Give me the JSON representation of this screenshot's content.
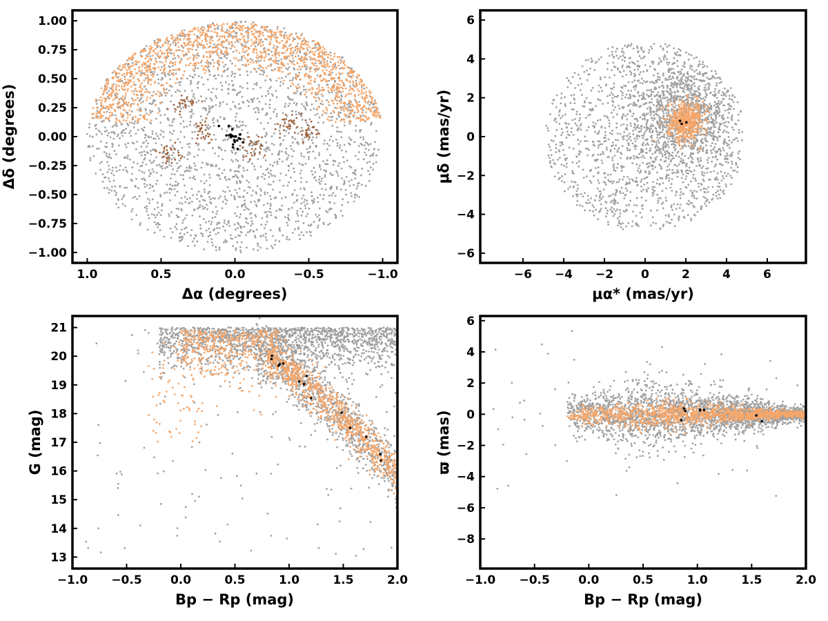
{
  "figure": {
    "colors": {
      "field": "#a0a0a0",
      "members": "#f5a66a",
      "members_dark": "#a0613a",
      "core": "#000000",
      "frame": "#000000"
    }
  },
  "chart_data": [
    {
      "id": "spatial",
      "type": "scatter",
      "xlabel": "Δα (degrees)",
      "ylabel": "Δδ (degrees)",
      "xlim": [
        1.1,
        -1.1
      ],
      "ylim": [
        -1.09,
        1.09
      ],
      "xticks": [
        1.0,
        0.5,
        0.0,
        -0.5,
        -1.0
      ],
      "xtick_labels": [
        "1.0",
        "0.5",
        "0.0",
        "−0.5",
        "−1.0"
      ],
      "yticks": [
        -1.0,
        -0.75,
        -0.5,
        -0.25,
        0.0,
        0.25,
        0.5,
        0.75,
        1.0
      ],
      "ytick_labels": [
        "−1.00",
        "−0.75",
        "−0.50",
        "−0.25",
        "0.00",
        "0.25",
        "0.50",
        "0.75",
        "1.00"
      ],
      "grid": false,
      "series": [
        {
          "role": "field",
          "color": "#a0a0a0",
          "distribution": "uniform disk",
          "center": [
            0,
            0
          ],
          "radius": 1.0,
          "n": 2200
        },
        {
          "role": "members",
          "color": "#f5a66a",
          "distribution": "northern arc band",
          "center": [
            0,
            0
          ],
          "radius_range": [
            0.55,
            1.0
          ],
          "n": 1400
        },
        {
          "role": "members_dark",
          "color": "#a0613a",
          "distribution": "clumps",
          "centers": [
            [
              0.22,
              0.05
            ],
            [
              -0.12,
              -0.08
            ],
            [
              -0.35,
              0.12
            ],
            [
              0.45,
              -0.15
            ],
            [
              -0.5,
              0.05
            ],
            [
              0.35,
              0.28
            ]
          ],
          "n": 160
        },
        {
          "role": "core",
          "color": "#000000",
          "distribution": "cluster center",
          "center": [
            0.0,
            0.0
          ],
          "sigma": 0.03,
          "n": 22
        }
      ]
    },
    {
      "id": "proper-motion",
      "type": "scatter",
      "xlabel": "μα* (mas/yr)",
      "ylabel": "μδ (mas/yr)",
      "xlim": [
        -8.1,
        7.9
      ],
      "ylim": [
        -6.5,
        6.5
      ],
      "xticks": [
        -6,
        -4,
        -2,
        0,
        2,
        4,
        6
      ],
      "xtick_labels": [
        "−6",
        "−4",
        "−2",
        "0",
        "2",
        "4",
        "6"
      ],
      "yticks": [
        -6,
        -4,
        -2,
        0,
        2,
        4,
        6
      ],
      "ytick_labels": [
        "−6",
        "−4",
        "−2",
        "0",
        "2",
        "4",
        "6"
      ],
      "grid": false,
      "series": [
        {
          "role": "field",
          "color": "#a0a0a0",
          "distribution": "disk concentrated near (2, 1)",
          "center": [
            0,
            0
          ],
          "radius": 4.9,
          "n": 2400
        },
        {
          "role": "members",
          "color": "#f5a66a",
          "distribution": "clump",
          "center": [
            2.0,
            0.8
          ],
          "sigma": 0.45,
          "n": 550
        },
        {
          "role": "core",
          "color": "#000000",
          "distribution": "clump",
          "center": [
            1.9,
            0.75
          ],
          "sigma": 0.12,
          "n": 3
        }
      ]
    },
    {
      "id": "cmd",
      "type": "scatter",
      "xlabel": "Bp − Rp (mag)",
      "ylabel": "G (mag)",
      "xlim": [
        -1.0,
        2.0
      ],
      "ylim": [
        12.6,
        21.4
      ],
      "y_inverted": false,
      "xticks": [
        -1.0,
        -0.5,
        0.0,
        0.5,
        1.0,
        1.5,
        2.0
      ],
      "xtick_labels": [
        "−1.0",
        "−0.5",
        "0.0",
        "0.5",
        "1.0",
        "1.5",
        "2.0"
      ],
      "yticks": [
        13,
        14,
        15,
        16,
        17,
        18,
        19,
        20,
        21
      ],
      "ytick_labels": [
        "13",
        "14",
        "15",
        "16",
        "17",
        "18",
        "19",
        "20",
        "21"
      ],
      "grid": false,
      "series": [
        {
          "role": "field",
          "color": "#a0a0a0",
          "distribution": "faint band up to G=21 plus sequence",
          "n": 2600
        },
        {
          "role": "members",
          "color": "#f5a66a",
          "distribution": "sequence from (0.3, 20.5) through (1.1, 19) to (2.0, 15.8)",
          "n": 1300
        },
        {
          "role": "core",
          "color": "#000000",
          "distribution": "sparse along sequence",
          "n": 14
        }
      ]
    },
    {
      "id": "parallax",
      "type": "scatter",
      "xlabel": "Bp − Rp (mag)",
      "ylabel": "ϖ (mas)",
      "xlim": [
        -1.0,
        2.0
      ],
      "ylim": [
        -9.9,
        6.3
      ],
      "xticks": [
        -1.0,
        -0.5,
        0.0,
        0.5,
        1.0,
        1.5,
        2.0
      ],
      "xtick_labels": [
        "−1.0",
        "−0.5",
        "0.0",
        "0.5",
        "1.0",
        "1.5",
        "2.0"
      ],
      "yticks": [
        -8,
        -6,
        -4,
        -2,
        0,
        2,
        4,
        6
      ],
      "ytick_labels": [
        "−8",
        "−6",
        "−4",
        "−2",
        "0",
        "2",
        "4",
        "6"
      ],
      "grid": false,
      "series": [
        {
          "role": "field",
          "color": "#a0a0a0",
          "distribution": "band around 0, spread larger at blue colors",
          "n": 2600
        },
        {
          "role": "members",
          "color": "#f5a66a",
          "distribution": "tight band around 0",
          "n": 1300
        },
        {
          "role": "core",
          "color": "#000000",
          "distribution": "sparse near 0",
          "n": 8
        }
      ]
    }
  ]
}
